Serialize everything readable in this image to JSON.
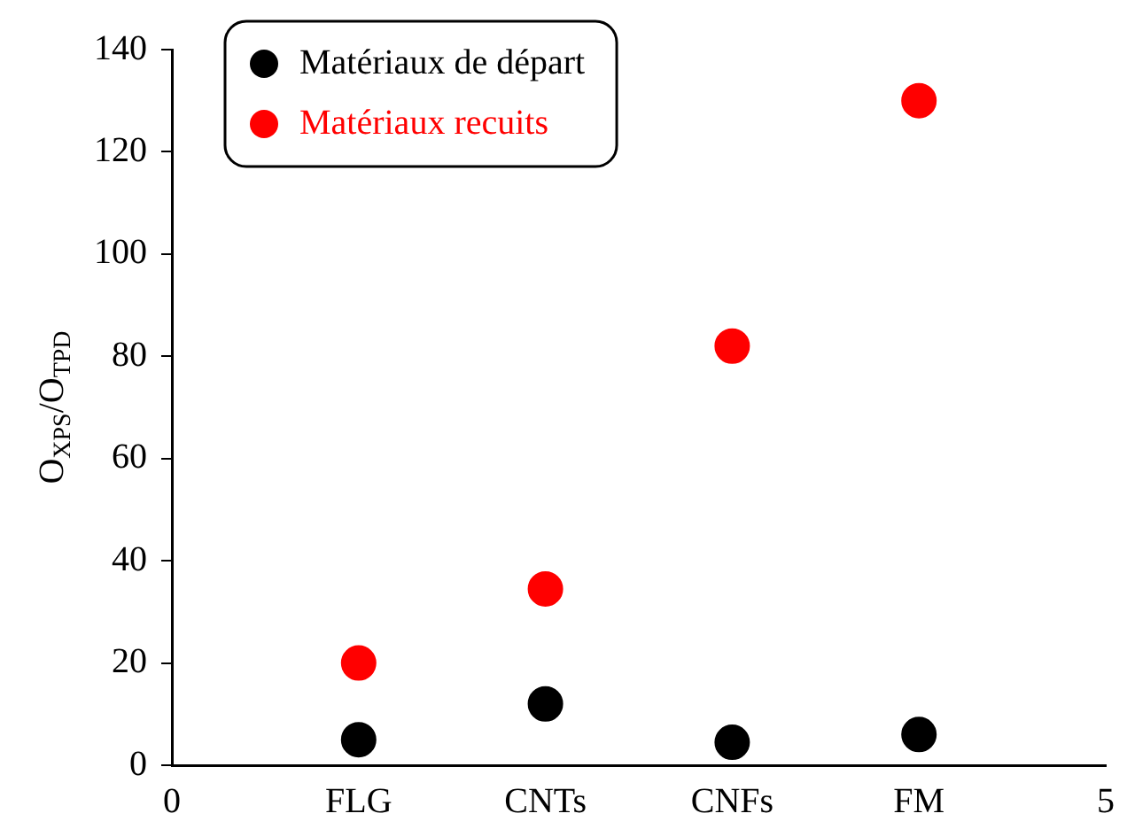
{
  "chart_data": {
    "type": "scatter",
    "ylabel": "O$_{XPS}$/O$_{TPD}$",
    "x": [
      1,
      2,
      3,
      4
    ],
    "xlim": [
      0,
      5
    ],
    "xticks": [
      0,
      {
        "value": 1,
        "label": "FLG"
      },
      {
        "value": 2,
        "label": "CNTs"
      },
      {
        "value": 3,
        "label": "CNFs"
      },
      {
        "value": 4,
        "label": "FM"
      },
      5
    ],
    "ylim": [
      0,
      140
    ],
    "yticks": [
      0,
      20,
      40,
      60,
      80,
      100,
      120,
      140
    ],
    "series": [
      {
        "name": "Matériaux de départ",
        "color": "#000000",
        "values": [
          5,
          12,
          4.5,
          6
        ]
      },
      {
        "name": "Matériaux recuits",
        "color": "#ff0000",
        "values": [
          20,
          34.5,
          82,
          130
        ]
      }
    ],
    "marker": "circle",
    "grid": false,
    "legend": "top left"
  }
}
